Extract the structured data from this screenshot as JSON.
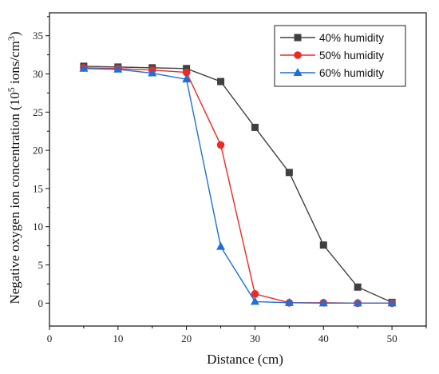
{
  "chart_data": {
    "type": "line",
    "title": "",
    "xlabel": "Distance (cm)",
    "ylabel": "Negative oxygen ion concentration (10^5 ions/cm^3)",
    "ylabel_parts": {
      "main": "Negative oxygen ion concentration (10",
      "exp1": "5",
      "mid": " ions/cm",
      "exp2": "3",
      "end": ")"
    },
    "xlim": [
      0,
      55
    ],
    "ylim": [
      -3,
      38
    ],
    "xticks": [
      0,
      10,
      20,
      30,
      40,
      50
    ],
    "yticks": [
      0,
      5,
      10,
      15,
      20,
      25,
      30,
      35
    ],
    "grid": false,
    "legend_position": "top-right",
    "x": [
      5,
      10,
      15,
      20,
      25,
      30,
      35,
      40,
      45,
      50
    ],
    "series": [
      {
        "name": "40% humidity",
        "color": "#404040",
        "marker": "square",
        "values": [
          31.0,
          30.9,
          30.8,
          30.7,
          29.0,
          23.0,
          17.1,
          7.6,
          2.1,
          0.1
        ]
      },
      {
        "name": "50% humidity",
        "color": "#ee2a24",
        "marker": "circle",
        "values": [
          30.8,
          30.7,
          30.5,
          30.2,
          20.7,
          1.2,
          0.05,
          0.05,
          0.0,
          0.0
        ]
      },
      {
        "name": "60% humidity",
        "color": "#1f6fd6",
        "marker": "triangle",
        "values": [
          30.7,
          30.6,
          30.1,
          29.3,
          7.4,
          0.2,
          0.05,
          0.0,
          0.0,
          0.0
        ]
      }
    ]
  }
}
